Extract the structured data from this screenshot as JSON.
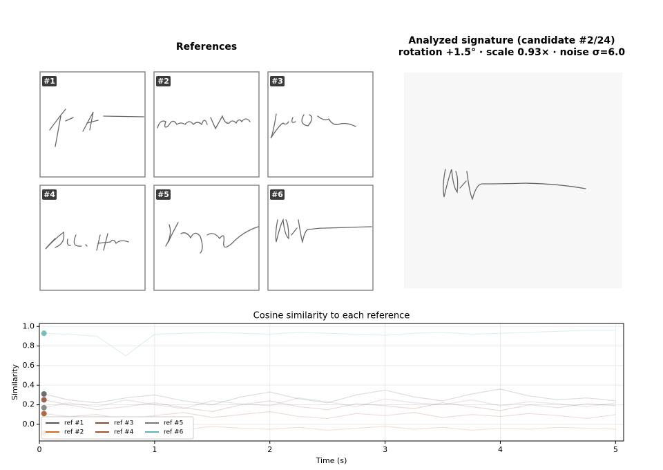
{
  "references": {
    "title": "References",
    "items": [
      {
        "label": "#1"
      },
      {
        "label": "#2"
      },
      {
        "label": "#3"
      },
      {
        "label": "#4"
      },
      {
        "label": "#5"
      },
      {
        "label": "#6"
      }
    ]
  },
  "analyzed": {
    "title": "Analyzed signature  (candidate #2/24)",
    "subtitle": "rotation +1.5° · scale 0.93× · noise σ=6.0"
  },
  "chart_data": {
    "type": "line",
    "title": "Cosine similarity to each reference",
    "x_label": "Time (s)",
    "y_label": "Similarity",
    "x": [
      0.04,
      0.25,
      0.5,
      0.75,
      1.0,
      1.25,
      1.5,
      1.75,
      2.0,
      2.25,
      2.5,
      2.75,
      3.0,
      3.25,
      3.5,
      3.75,
      4.0,
      4.25,
      4.5,
      4.75,
      5.0
    ],
    "xlim": [
      0,
      5.07
    ],
    "xticks": [
      0,
      1,
      2,
      3,
      4,
      5
    ],
    "ylim": [
      -0.17,
      1.03
    ],
    "yticks": [
      {
        "value": 0,
        "label": "0.0"
      },
      {
        "value": 0.2,
        "label": "0.2"
      },
      {
        "value": 0.4,
        "label": "0.4"
      },
      {
        "value": 0.6,
        "label": "0.6"
      },
      {
        "value": 0.8,
        "label": "0.8"
      },
      {
        "value": 1,
        "label": "1.0"
      }
    ],
    "grid": true,
    "legend": "lower left",
    "series": [
      {
        "name": "ref #1",
        "color": "#555555",
        "values": [
          0.31,
          0.25,
          0.22,
          0.27,
          0.3,
          0.24,
          0.2,
          0.28,
          0.33,
          0.26,
          0.22,
          0.3,
          0.35,
          0.28,
          0.24,
          0.31,
          0.36,
          0.29,
          0.25,
          0.27,
          0.24
        ]
      },
      {
        "name": "ref #2",
        "color": "#d2691e",
        "values": [
          -0.09,
          -0.05,
          -0.02,
          -0.04,
          -0.03,
          -0.06,
          -0.02,
          -0.04,
          -0.05,
          -0.03,
          -0.06,
          -0.04,
          -0.02,
          -0.05,
          -0.03,
          -0.06,
          -0.04,
          -0.05,
          -0.03,
          -0.04,
          -0.05
        ]
      },
      {
        "name": "ref #3",
        "color": "#8b4a2b",
        "values": [
          0.25,
          0.2,
          0.15,
          0.18,
          0.22,
          0.17,
          0.13,
          0.2,
          0.24,
          0.18,
          0.15,
          0.21,
          0.19,
          0.16,
          0.22,
          0.18,
          0.14,
          0.2,
          0.17,
          0.21,
          0.19
        ]
      },
      {
        "name": "ref #4",
        "color": "#a0522d",
        "values": [
          0.11,
          0.08,
          0.1,
          0.05,
          0.09,
          0.12,
          0.07,
          0.1,
          0.13,
          0.08,
          0.06,
          0.11,
          0.09,
          0.12,
          0.07,
          0.1,
          0.08,
          0.11,
          0.09,
          0.06,
          0.1
        ]
      },
      {
        "name": "ref #5",
        "color": "#777777",
        "values": [
          0.17,
          0.22,
          0.18,
          0.25,
          0.2,
          0.16,
          0.24,
          0.21,
          0.19,
          0.27,
          0.23,
          0.18,
          0.26,
          0.22,
          0.2,
          0.25,
          0.19,
          0.23,
          0.21,
          0.18,
          0.22
        ]
      },
      {
        "name": "ref #6",
        "color": "#5fb3b3",
        "values": [
          0.93,
          0.92,
          0.9,
          0.7,
          0.92,
          0.93,
          0.94,
          0.93,
          0.92,
          0.94,
          0.93,
          0.92,
          0.91,
          0.93,
          0.94,
          0.92,
          0.93,
          0.94,
          0.95,
          0.96,
          0.96
        ]
      }
    ]
  }
}
